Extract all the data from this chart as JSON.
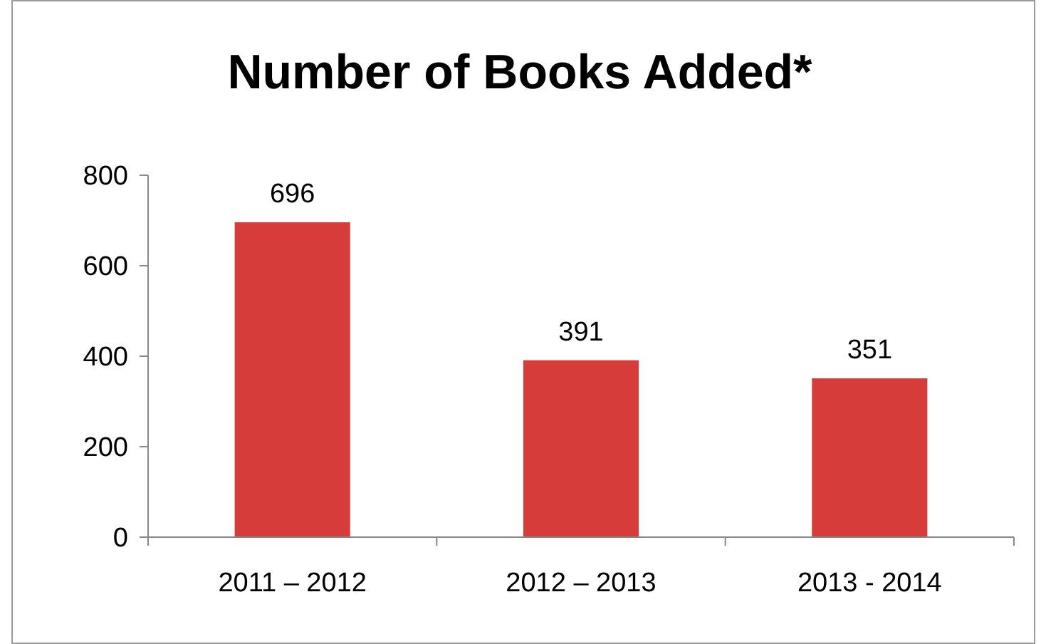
{
  "chart_data": {
    "type": "bar",
    "title": "Number of Books Added*",
    "categories": [
      "2011 – 2012",
      "2012 – 2013",
      "2013 - 2014"
    ],
    "values": [
      696,
      391,
      351
    ],
    "color": "#d63c3a",
    "ylim": [
      0,
      800
    ],
    "yticks": [
      0,
      200,
      400,
      600,
      800
    ],
    "grid": false,
    "data_labels": true
  }
}
